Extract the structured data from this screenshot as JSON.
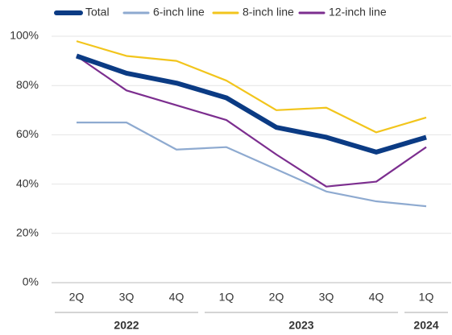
{
  "chart_data": {
    "type": "line",
    "categories": [
      "2Q",
      "3Q",
      "4Q",
      "1Q",
      "2Q",
      "3Q",
      "4Q",
      "1Q"
    ],
    "x_groups": [
      {
        "label": "2022",
        "size": 3
      },
      {
        "label": "2023",
        "size": 4
      },
      {
        "label": "2024",
        "size": 1
      }
    ],
    "series": [
      {
        "name": "Total",
        "color": "#0b3b84",
        "values": [
          92,
          85,
          81,
          75,
          63,
          59,
          53,
          59
        ]
      },
      {
        "name": "6-inch line",
        "color": "#8eaad0",
        "values": [
          65,
          65,
          54,
          55,
          46,
          37,
          33,
          31
        ]
      },
      {
        "name": "8-inch line",
        "color": "#f2c51c",
        "values": [
          98,
          92,
          90,
          82,
          70,
          71,
          61,
          67
        ]
      },
      {
        "name": "12-inch line",
        "color": "#7c2e8f",
        "values": [
          92,
          78,
          72,
          66,
          52,
          39,
          41,
          55
        ]
      }
    ],
    "ylim": [
      0,
      100
    ],
    "yticks": [
      {
        "value": 0,
        "label": "0%"
      },
      {
        "value": 20,
        "label": "20%"
      },
      {
        "value": 40,
        "label": "40%"
      },
      {
        "value": 60,
        "label": "60%"
      },
      {
        "value": 80,
        "label": "80%"
      },
      {
        "value": 100,
        "label": "100%"
      }
    ],
    "grid": true,
    "legend": "top"
  }
}
